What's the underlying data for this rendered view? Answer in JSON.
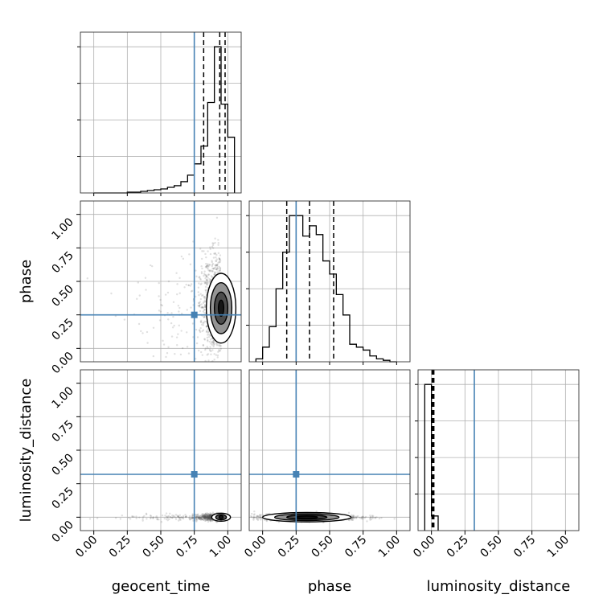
{
  "chart_data": {
    "type": "corner",
    "parameters": [
      "geocent_time",
      "phase",
      "luminosity_distance"
    ],
    "axis_labels": {
      "x": [
        "geocent_time",
        "phase",
        "luminosity_distance"
      ],
      "y": [
        "phase",
        "luminosity_distance"
      ]
    },
    "tick_labels": [
      "0.00",
      "0.25",
      "0.50",
      "0.75",
      "1.00"
    ],
    "ticks": [
      0,
      0.25,
      0.5,
      0.75,
      1.0
    ],
    "xlim": {
      "geocent_time": [
        -0.1,
        1.1
      ],
      "phase": [
        -0.1,
        1.1
      ],
      "luminosity_distance": [
        -0.1,
        1.1
      ]
    },
    "ylim": {
      "phase": [
        -0.1,
        1.1
      ],
      "luminosity_distance": [
        -0.1,
        1.1
      ]
    },
    "truths": {
      "geocent_time": 0.75,
      "phase": 0.25,
      "luminosity_distance": 0.32
    },
    "truth_color": "#4682b4",
    "histograms": [
      {
        "parameter": "geocent_time",
        "bin_edges": [
          0.0,
          0.05,
          0.1,
          0.15,
          0.2,
          0.25,
          0.3,
          0.35,
          0.4,
          0.45,
          0.5,
          0.55,
          0.6,
          0.65,
          0.7,
          0.75,
          0.8,
          0.85,
          0.9,
          0.95,
          1.0,
          1.05
        ],
        "counts": [
          0,
          0,
          0,
          0,
          0,
          1,
          1,
          2,
          3,
          4,
          5,
          7,
          9,
          14,
          22,
          36,
          58,
          112,
          181,
          110,
          69
        ],
        "quantiles": [
          0.82,
          0.94,
          0.98
        ]
      },
      {
        "parameter": "phase",
        "bin_edges": [
          -0.05,
          0.0,
          0.05,
          0.1,
          0.15,
          0.2,
          0.25,
          0.3,
          0.35,
          0.4,
          0.45,
          0.5,
          0.55,
          0.6,
          0.65,
          0.7,
          0.75,
          0.8,
          0.85,
          0.9,
          0.95,
          1.0
        ],
        "counts": [
          2,
          10,
          24,
          50,
          75,
          100,
          100,
          86,
          93,
          87,
          69,
          60,
          46,
          32,
          12,
          10,
          8,
          4,
          2,
          1,
          0
        ],
        "quantiles": [
          0.18,
          0.35,
          0.53
        ]
      },
      {
        "parameter": "luminosity_distance",
        "bin_edges": [
          -0.05,
          0.0,
          0.05
        ],
        "counts": [
          100,
          10
        ],
        "quantiles": [
          0.005,
          0.01,
          0.018
        ]
      }
    ],
    "scatter_panels": [
      {
        "x": "geocent_time",
        "y": "phase",
        "mode_x": 0.95,
        "mode_y": 0.3,
        "contour_levels": [
          {
            "rx": 0.02,
            "ry": 0.06
          },
          {
            "rx": 0.05,
            "ry": 0.12
          },
          {
            "rx": 0.08,
            "ry": 0.19
          },
          {
            "rx": 0.11,
            "ry": 0.26
          }
        ]
      },
      {
        "x": "geocent_time",
        "y": "luminosity_distance",
        "mode_x": 0.95,
        "mode_y": 0.0,
        "contour_levels": [
          {
            "rx": 0.015,
            "ry": 0.012
          },
          {
            "rx": 0.04,
            "ry": 0.02
          },
          {
            "rx": 0.07,
            "ry": 0.03
          }
        ]
      },
      {
        "x": "phase",
        "y": "luminosity_distance",
        "mode_x": 0.33,
        "mode_y": 0.0,
        "contour_levels": [
          {
            "rx": 0.08,
            "ry": 0.008
          },
          {
            "rx": 0.15,
            "ry": 0.015
          },
          {
            "rx": 0.24,
            "ry": 0.025
          },
          {
            "rx": 0.33,
            "ry": 0.035
          }
        ]
      }
    ],
    "grid": true
  }
}
